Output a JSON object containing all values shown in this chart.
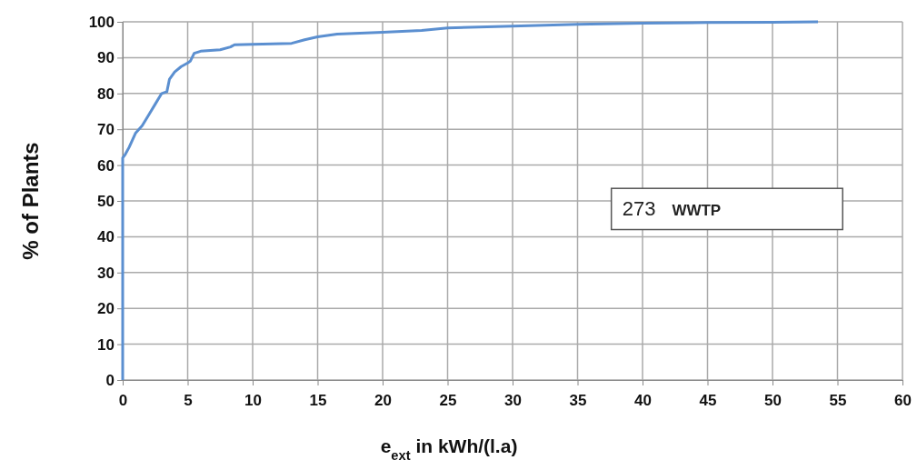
{
  "chart_data": {
    "type": "line",
    "xlabel": "e$_{ext}$ in kWh/(l.a)",
    "ylabel": "% of Plants",
    "annotations": [
      "273",
      "WWTP"
    ],
    "series": [
      {
        "color": "#5b8fd0",
        "x": [
          0,
          0,
          0.2,
          0.5,
          1,
          1.5,
          2,
          2.5,
          3,
          3.4,
          3.6,
          4,
          4.5,
          5,
          5.2,
          5.5,
          6,
          7.5,
          8.3,
          8.6,
          10,
          13,
          14,
          15,
          16.5,
          20,
          23,
          25,
          30,
          35,
          40,
          45,
          50,
          53.5
        ],
        "values": [
          0,
          62,
          63,
          65,
          69,
          71,
          74,
          77,
          80,
          80.5,
          84,
          86,
          87.5,
          88.5,
          89,
          91.2,
          91.8,
          92.2,
          93,
          93.6,
          93.7,
          94,
          95,
          95.8,
          96.6,
          97.1,
          97.6,
          98.3,
          98.8,
          99.3,
          99.6,
          99.8,
          99.9,
          100
        ]
      }
    ],
    "xlim": [
      0,
      60
    ],
    "xticks": [
      0,
      5,
      10,
      15,
      20,
      25,
      30,
      35,
      40,
      45,
      50,
      55,
      60
    ],
    "ylim": [
      0,
      100
    ],
    "yticks": [
      0,
      10,
      20,
      30,
      40,
      50,
      60,
      70,
      80,
      90,
      100
    ],
    "grid": true,
    "line_style": "solid",
    "marker": "none"
  }
}
